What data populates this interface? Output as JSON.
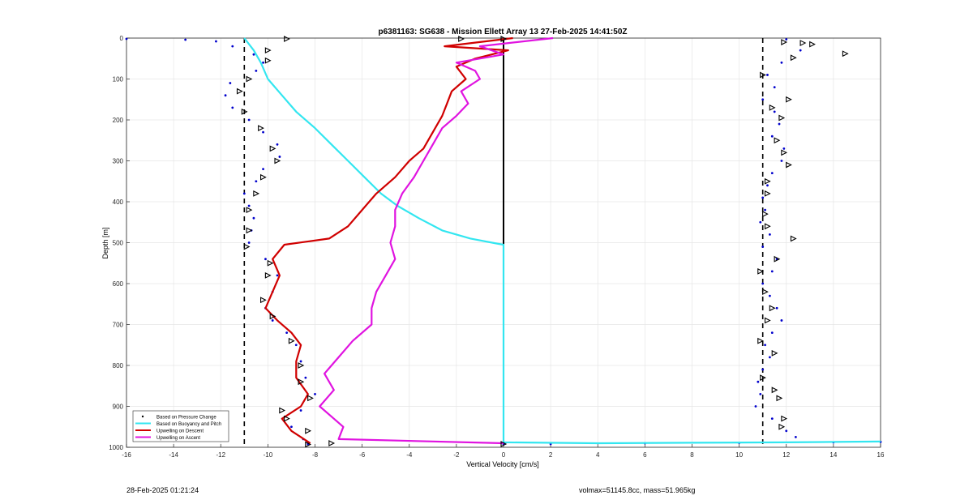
{
  "chart_data": {
    "type": "line",
    "title": "p6381163: SG638 - Mission Ellett Array 13 27-Feb-2025 14:41:50Z",
    "xlabel": "Vertical Velocity [cm/s]",
    "ylabel": "Depth [m]",
    "xlim": [
      -16,
      16
    ],
    "ylim": [
      0,
      1000
    ],
    "y_reversed": true,
    "xticks": [
      -16,
      -14,
      -12,
      -10,
      -8,
      -6,
      -4,
      -2,
      0,
      2,
      4,
      6,
      8,
      10,
      12,
      14,
      16
    ],
    "yticks": [
      0,
      100,
      200,
      300,
      400,
      500,
      600,
      700,
      800,
      900,
      1000
    ],
    "grid": true,
    "legend_position": "bottom-left",
    "reference_lines": [
      {
        "x": -11,
        "style": "dashed",
        "color": "#000000"
      },
      {
        "x": 11,
        "style": "dashed",
        "color": "#000000"
      },
      {
        "x": 0,
        "style": "solid",
        "color": "#000000",
        "y_range": [
          0,
          505
        ]
      }
    ],
    "series": [
      {
        "name": "Based on Pressure Change",
        "style": "points",
        "color": "#0000cc",
        "points": [
          [
            -16,
            2
          ],
          [
            -13.5,
            4
          ],
          [
            -12.2,
            8
          ],
          [
            -11.5,
            20
          ],
          [
            -10.6,
            40
          ],
          [
            -10.2,
            60
          ],
          [
            -10.5,
            80
          ],
          [
            -11.6,
            110
          ],
          [
            -11.8,
            140
          ],
          [
            -11.5,
            170
          ],
          [
            -10.8,
            200
          ],
          [
            -10.2,
            230
          ],
          [
            -9.6,
            260
          ],
          [
            -9.5,
            290
          ],
          [
            -10.2,
            320
          ],
          [
            -10.5,
            350
          ],
          [
            -11.0,
            380
          ],
          [
            -10.8,
            410
          ],
          [
            -10.6,
            440
          ],
          [
            -10.7,
            470
          ],
          [
            -10.8,
            500
          ],
          [
            -10.1,
            540
          ],
          [
            -9.6,
            580
          ],
          [
            -9.8,
            620
          ],
          [
            -10.1,
            660
          ],
          [
            -9.8,
            690
          ],
          [
            -9.2,
            720
          ],
          [
            -8.8,
            750
          ],
          [
            -8.6,
            790
          ],
          [
            -8.4,
            830
          ],
          [
            -8.0,
            870
          ],
          [
            -8.6,
            910
          ],
          [
            -9.0,
            950
          ],
          [
            -8.5,
            980
          ],
          [
            -8.3,
            992
          ],
          [
            0,
            992
          ],
          [
            2,
            992
          ],
          [
            6,
            990
          ],
          [
            10,
            989
          ],
          [
            14,
            988
          ],
          [
            16,
            987
          ],
          [
            12.0,
            3
          ],
          [
            12.6,
            30
          ],
          [
            11.8,
            60
          ],
          [
            11.2,
            90
          ],
          [
            11.5,
            120
          ],
          [
            11.0,
            150
          ],
          [
            11.5,
            180
          ],
          [
            11.7,
            210
          ],
          [
            11.4,
            240
          ],
          [
            11.9,
            270
          ],
          [
            11.8,
            300
          ],
          [
            11.4,
            330
          ],
          [
            11.2,
            360
          ],
          [
            11.0,
            390
          ],
          [
            11.1,
            420
          ],
          [
            10.9,
            450
          ],
          [
            11.3,
            480
          ],
          [
            11.0,
            510
          ],
          [
            11.6,
            540
          ],
          [
            11.4,
            570
          ],
          [
            11.0,
            600
          ],
          [
            11.3,
            630
          ],
          [
            11.6,
            660
          ],
          [
            11.8,
            690
          ],
          [
            11.4,
            720
          ],
          [
            11.1,
            750
          ],
          [
            11.3,
            780
          ],
          [
            11.0,
            810
          ],
          [
            10.8,
            840
          ],
          [
            10.9,
            870
          ],
          [
            10.7,
            900
          ],
          [
            11.4,
            930
          ],
          [
            12.0,
            960
          ],
          [
            12.4,
            975
          ]
        ]
      },
      {
        "name": "Based on Buoyancy and Pitch",
        "style": "line",
        "color": "#33e6f0",
        "points": [
          [
            -11.0,
            0
          ],
          [
            -10.6,
            30
          ],
          [
            -10.3,
            60
          ],
          [
            -10.0,
            100
          ],
          [
            -9.4,
            140
          ],
          [
            -8.8,
            180
          ],
          [
            -8.0,
            220
          ],
          [
            -7.3,
            260
          ],
          [
            -6.6,
            300
          ],
          [
            -5.9,
            340
          ],
          [
            -5.2,
            380
          ],
          [
            -4.5,
            410
          ],
          [
            -3.6,
            440
          ],
          [
            -2.6,
            470
          ],
          [
            -1.4,
            490
          ],
          [
            -0.3,
            502
          ],
          [
            0,
            505
          ],
          [
            0,
            700
          ],
          [
            0,
            988
          ],
          [
            4,
            990
          ],
          [
            8,
            989
          ],
          [
            12,
            988
          ],
          [
            14,
            987
          ],
          [
            16,
            986
          ]
        ]
      },
      {
        "name": "Upwelling on Descent",
        "style": "line",
        "color": "#d00000",
        "points": [
          [
            0.4,
            0
          ],
          [
            -2.5,
            20
          ],
          [
            0.2,
            30
          ],
          [
            -1.2,
            50
          ],
          [
            -2.0,
            70
          ],
          [
            -1.6,
            100
          ],
          [
            -2.2,
            130
          ],
          [
            -2.4,
            160
          ],
          [
            -2.6,
            190
          ],
          [
            -3.0,
            230
          ],
          [
            -3.4,
            270
          ],
          [
            -4.0,
            300
          ],
          [
            -4.6,
            340
          ],
          [
            -5.4,
            380
          ],
          [
            -6.0,
            420
          ],
          [
            -6.6,
            460
          ],
          [
            -7.4,
            490
          ],
          [
            -9.3,
            505
          ],
          [
            -9.8,
            540
          ],
          [
            -9.5,
            580
          ],
          [
            -9.8,
            620
          ],
          [
            -10.1,
            660
          ],
          [
            -9.6,
            690
          ],
          [
            -9.0,
            720
          ],
          [
            -8.6,
            750
          ],
          [
            -8.8,
            790
          ],
          [
            -8.8,
            830
          ],
          [
            -8.3,
            870
          ],
          [
            -8.6,
            900
          ],
          [
            -9.4,
            930
          ],
          [
            -9.0,
            960
          ],
          [
            -8.2,
            990
          ]
        ]
      },
      {
        "name": "Upwelling on Ascent",
        "style": "line",
        "color": "#e014e0",
        "points": [
          [
            2.1,
            0
          ],
          [
            -1.0,
            20
          ],
          [
            0.0,
            40
          ],
          [
            -2.0,
            60
          ],
          [
            -1.2,
            80
          ],
          [
            -1.0,
            100
          ],
          [
            -1.8,
            130
          ],
          [
            -1.5,
            160
          ],
          [
            -2.0,
            190
          ],
          [
            -2.6,
            220
          ],
          [
            -3.0,
            260
          ],
          [
            -3.4,
            300
          ],
          [
            -3.8,
            340
          ],
          [
            -4.3,
            380
          ],
          [
            -4.6,
            420
          ],
          [
            -4.6,
            460
          ],
          [
            -4.8,
            500
          ],
          [
            -4.6,
            540
          ],
          [
            -5.0,
            580
          ],
          [
            -5.4,
            620
          ],
          [
            -5.6,
            660
          ],
          [
            -5.6,
            700
          ],
          [
            -6.4,
            740
          ],
          [
            -7.0,
            780
          ],
          [
            -7.6,
            820
          ],
          [
            -7.2,
            860
          ],
          [
            -7.8,
            900
          ],
          [
            -6.8,
            950
          ],
          [
            -7.0,
            980
          ],
          [
            0,
            990
          ]
        ]
      }
    ],
    "markers": {
      "name": "triangle markers",
      "color": "#000000",
      "points": [
        [
          -9.2,
          2
        ],
        [
          -10.0,
          30
        ],
        [
          -10.0,
          55
        ],
        [
          -10.8,
          100
        ],
        [
          -11.2,
          130
        ],
        [
          -11.0,
          180
        ],
        [
          -10.3,
          220
        ],
        [
          -9.8,
          270
        ],
        [
          -9.6,
          300
        ],
        [
          -10.2,
          340
        ],
        [
          -10.5,
          380
        ],
        [
          -10.8,
          420
        ],
        [
          -10.8,
          470
        ],
        [
          -10.9,
          510
        ],
        [
          -9.9,
          550
        ],
        [
          -10.0,
          580
        ],
        [
          -10.2,
          640
        ],
        [
          -9.8,
          680
        ],
        [
          -9.0,
          740
        ],
        [
          -8.6,
          800
        ],
        [
          -8.6,
          840
        ],
        [
          -8.2,
          880
        ],
        [
          -9.4,
          910
        ],
        [
          -9.2,
          930
        ],
        [
          -8.3,
          960
        ],
        [
          -7.3,
          990
        ],
        [
          -1.8,
          2
        ],
        [
          0,
          2
        ],
        [
          11.9,
          10
        ],
        [
          12.7,
          12
        ],
        [
          13.1,
          15
        ],
        [
          14.5,
          38
        ],
        [
          12.3,
          48
        ],
        [
          11.0,
          90
        ],
        [
          12.1,
          150
        ],
        [
          11.4,
          170
        ],
        [
          11.8,
          195
        ],
        [
          11.6,
          250
        ],
        [
          11.9,
          280
        ],
        [
          12.1,
          310
        ],
        [
          11.2,
          350
        ],
        [
          11.2,
          380
        ],
        [
          11.1,
          430
        ],
        [
          11.2,
          460
        ],
        [
          12.3,
          490
        ],
        [
          11.6,
          540
        ],
        [
          10.9,
          570
        ],
        [
          11.1,
          620
        ],
        [
          11.4,
          660
        ],
        [
          11.2,
          690
        ],
        [
          10.9,
          740
        ],
        [
          11.5,
          770
        ],
        [
          11.0,
          830
        ],
        [
          11.5,
          860
        ],
        [
          11.7,
          880
        ],
        [
          11.9,
          930
        ],
        [
          11.8,
          950
        ],
        [
          0,
          992
        ],
        [
          -8.3,
          993
        ]
      ]
    },
    "legend": [
      {
        "label": "Based on Pressure Change",
        "color": "#000000",
        "kind": "dot"
      },
      {
        "label": "Based on Buoyancy and Pitch",
        "color": "#33e6f0",
        "kind": "line"
      },
      {
        "label": "Upwelling on Descent",
        "color": "#d00000",
        "kind": "line"
      },
      {
        "label": "Upwelling on Ascent",
        "color": "#e014e0",
        "kind": "line"
      }
    ]
  },
  "footer": {
    "timestamp": "28-Feb-2025 01:21:24",
    "info": "volmax=51145.8cc, mass=51.965kg"
  }
}
